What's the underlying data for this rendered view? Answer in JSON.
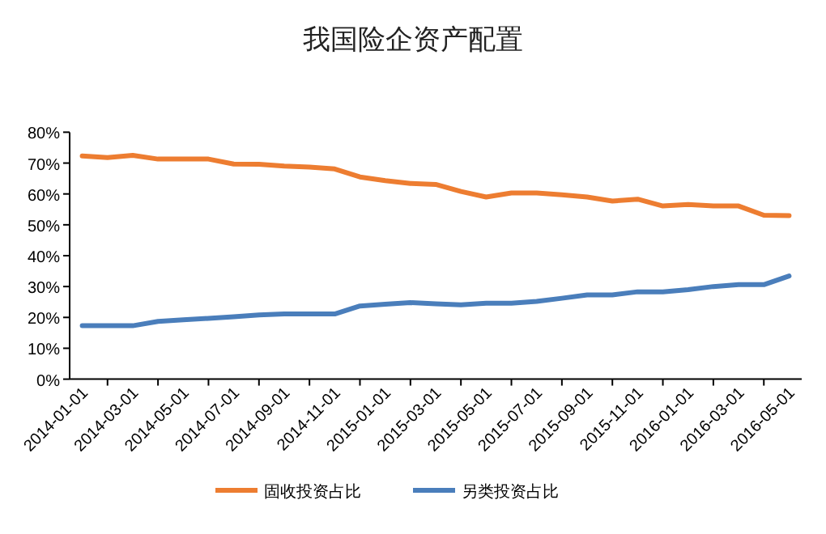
{
  "chart_data": {
    "type": "line",
    "title": "我国险企资产配置",
    "categories": [
      "2014-01-01",
      null,
      "2014-03-01",
      null,
      "2014-05-01",
      null,
      "2014-07-01",
      null,
      "2014-09-01",
      null,
      "2014-11-01",
      null,
      "2015-01-01",
      null,
      "2015-03-01",
      null,
      "2015-05-01",
      null,
      "2015-07-01",
      null,
      "2015-09-01",
      null,
      "2015-11-01",
      null,
      "2016-01-01",
      null,
      "2016-03-01",
      null,
      "2016-05-01"
    ],
    "series": [
      {
        "name": "固收投资占比",
        "color": "#ed7d31",
        "values": [
          72.3,
          71.8,
          72.5,
          71.3,
          71.3,
          71.3,
          69.7,
          69.6,
          69.0,
          68.7,
          68.1,
          65.5,
          64.3,
          63.4,
          63.1,
          60.8,
          59.0,
          60.3,
          60.3,
          59.7,
          59.0,
          57.7,
          58.3,
          56.1,
          56.6,
          56.1,
          56.1,
          53.1,
          53.0
        ]
      },
      {
        "name": "另类投资占比",
        "color": "#4a7ebb",
        "values": [
          17.3,
          17.3,
          17.3,
          18.7,
          19.2,
          19.7,
          20.2,
          20.8,
          21.1,
          21.1,
          21.1,
          23.7,
          24.3,
          24.8,
          24.4,
          24.1,
          24.6,
          24.6,
          25.2,
          26.2,
          27.3,
          27.3,
          28.3,
          28.3,
          29.0,
          30.0,
          30.6,
          30.6,
          33.4
        ]
      }
    ],
    "ylim": [
      0,
      80
    ],
    "yticks": [
      {
        "value": 0,
        "label": "0%"
      },
      {
        "value": 10,
        "label": "10%"
      },
      {
        "value": 20,
        "label": "20%"
      },
      {
        "value": 30,
        "label": "30%"
      },
      {
        "value": 40,
        "label": "40%"
      },
      {
        "value": 50,
        "label": "50%"
      },
      {
        "value": 60,
        "label": "60%"
      },
      {
        "value": 70,
        "label": "70%"
      },
      {
        "value": 80,
        "label": "80%"
      }
    ],
    "legend": "bottom",
    "grid": false,
    "marker": "none",
    "line_style": "solid"
  }
}
